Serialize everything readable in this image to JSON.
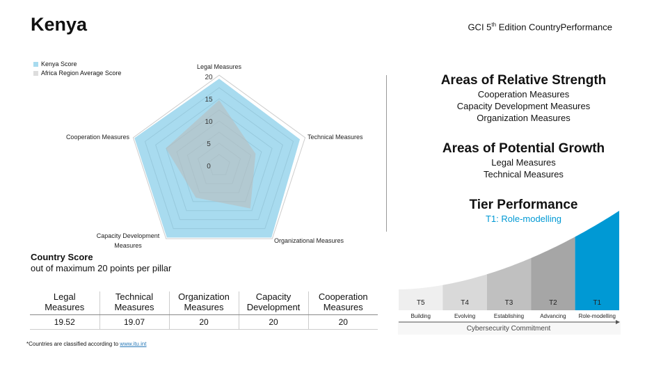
{
  "header": {
    "country": "Kenya",
    "edition_prefix": "GCI 5",
    "edition_sup": "th",
    "edition_suffix": " Edition CountryPerformance"
  },
  "colors": {
    "kenya": "#a8dbef",
    "africa": "#b9bcbc",
    "accent": "#0099d4"
  },
  "chart_data": {
    "type": "radar",
    "axes": [
      "Legal Measures",
      "Technical Measures",
      "Organizational Measures",
      "Capacity Development Measures",
      "Cooperation Measures"
    ],
    "range": [
      0,
      20
    ],
    "ticks": [
      "0",
      "5",
      "10",
      "15",
      "20"
    ],
    "legend": [
      "Kenya Score",
      "Africa Region Average Score"
    ],
    "legend_position": "top-left",
    "series": [
      {
        "name": "Kenya Score",
        "values": [
          19.52,
          19.07,
          20,
          20,
          20
        ]
      },
      {
        "name": "Africa Region Average Score",
        "values": [
          14.7,
          8.6,
          11.9,
          8.9,
          12.6
        ]
      }
    ]
  },
  "strength": {
    "title": "Areas of Relative Strength",
    "items": [
      "Cooperation Measures",
      "Capacity Development Measures",
      "Organization Measures"
    ]
  },
  "growth": {
    "title": "Areas of Potential Growth",
    "items": [
      "Legal Measures",
      "Technical Measures"
    ]
  },
  "tier": {
    "title": "Tier Performance",
    "value": "T1: Role-modelling",
    "tiers": [
      {
        "code": "T5",
        "name": "Building"
      },
      {
        "code": "T4",
        "name": "Evolving"
      },
      {
        "code": "T3",
        "name": "Establishing"
      },
      {
        "code": "T2",
        "name": "Advancing"
      },
      {
        "code": "T1",
        "name": "Role-modelling"
      }
    ],
    "axis_label": "Cybersecurity Commitment"
  },
  "score": {
    "title": "Country Score",
    "subtitle": "out of maximum 20 points per pillar",
    "headers": [
      [
        "Legal",
        "Measures"
      ],
      [
        "Technical",
        "Measures"
      ],
      [
        "Organization",
        "Measures"
      ],
      [
        "Capacity",
        "Development"
      ],
      [
        "Cooperation",
        "Measures"
      ]
    ],
    "values": [
      "19.52",
      "19.07",
      "20",
      "20",
      "20"
    ]
  },
  "footnote": {
    "text": "*Countries are classified according to ",
    "link": "www.itu.int"
  }
}
